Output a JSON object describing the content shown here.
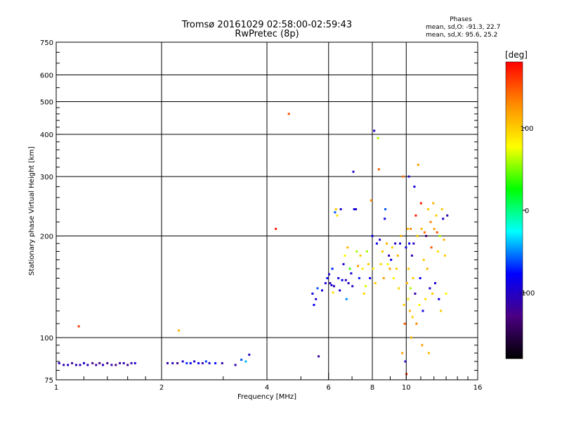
{
  "header": {
    "title_line1": "Tromsø 20161029 02:58:00-02:59:43",
    "title_line2": "RwPretec (8p)",
    "phase_title": "Phases",
    "phase_o": "mean, sd,O: -91.3, 22.7",
    "phase_x": "mean, sd,X:  95.6, 25.2"
  },
  "colorbar": {
    "unit": "[deg]",
    "range": [
      -180,
      180
    ],
    "ticks": [
      {
        "value": 100,
        "label": "100"
      },
      {
        "value": 0,
        "label": "0"
      },
      {
        "value": -100,
        "label": "-100"
      }
    ],
    "stops": [
      "#000000",
      "#4b0082",
      "#0000ff",
      "#00ffff",
      "#00ff00",
      "#ffff00",
      "#ff8c00",
      "#ff0000"
    ]
  },
  "chart_data": {
    "type": "scatter",
    "xlabel": "Frequency [MHz]",
    "ylabel": "Stationary phase Virtual Height [km]",
    "x_scale": "log",
    "y_scale": "log",
    "xlim": [
      1,
      16
    ],
    "ylim": [
      75,
      750
    ],
    "x_ticks": [
      {
        "v": 1,
        "l": "1"
      },
      {
        "v": 2,
        "l": "2"
      },
      {
        "v": 4,
        "l": "4"
      },
      {
        "v": 6,
        "l": "6"
      },
      {
        "v": 8,
        "l": "8"
      },
      {
        "v": 10,
        "l": "10"
      },
      {
        "v": 16,
        "l": "16"
      }
    ],
    "y_ticks": [
      {
        "v": 75,
        "l": "75"
      },
      {
        "v": 100,
        "l": "100"
      },
      {
        "v": 200,
        "l": "200"
      },
      {
        "v": 300,
        "l": "300"
      },
      {
        "v": 400,
        "l": "400"
      },
      {
        "v": 500,
        "l": "500"
      },
      {
        "v": 600,
        "l": "600"
      },
      {
        "v": 750,
        "l": "750"
      }
    ],
    "x_grid": [
      2,
      4,
      6,
      8,
      10
    ],
    "y_grid": [
      100,
      200,
      300,
      400,
      500,
      600
    ],
    "points": [
      [
        1.02,
        84,
        -105
      ],
      [
        1.05,
        83,
        -110
      ],
      [
        1.08,
        83,
        -100
      ],
      [
        1.11,
        84,
        -120
      ],
      [
        1.14,
        83,
        -105
      ],
      [
        1.17,
        83,
        -110
      ],
      [
        1.2,
        84,
        -95
      ],
      [
        1.23,
        83,
        -105
      ],
      [
        1.27,
        84,
        -130
      ],
      [
        1.3,
        83,
        -115
      ],
      [
        1.33,
        84,
        -130
      ],
      [
        1.36,
        83,
        -105
      ],
      [
        1.4,
        84,
        -125
      ],
      [
        1.44,
        83,
        -110
      ],
      [
        1.48,
        83,
        -130
      ],
      [
        1.52,
        84,
        -115
      ],
      [
        1.56,
        84,
        -105
      ],
      [
        1.6,
        83,
        -125
      ],
      [
        1.64,
        84,
        -110
      ],
      [
        1.68,
        84,
        -100
      ],
      [
        1.16,
        108,
        160
      ],
      [
        2.08,
        84,
        -115
      ],
      [
        2.15,
        84,
        -105
      ],
      [
        2.22,
        84,
        -125
      ],
      [
        2.3,
        85,
        -95
      ],
      [
        2.36,
        84,
        -70
      ],
      [
        2.42,
        84,
        -85
      ],
      [
        2.48,
        85,
        -100
      ],
      [
        2.55,
        84,
        -80
      ],
      [
        2.62,
        84,
        -110
      ],
      [
        2.68,
        85,
        -65
      ],
      [
        2.74,
        84,
        -95
      ],
      [
        2.85,
        84,
        -75
      ],
      [
        2.98,
        84,
        -110
      ],
      [
        2.24,
        105,
        110
      ],
      [
        3.25,
        83,
        -110
      ],
      [
        3.38,
        86,
        -60
      ],
      [
        3.48,
        85,
        -40
      ],
      [
        3.56,
        89,
        -105
      ],
      [
        4.24,
        210,
        170
      ],
      [
        4.62,
        460,
        150
      ],
      [
        5.4,
        135,
        -90
      ],
      [
        5.45,
        125,
        -80
      ],
      [
        5.52,
        130,
        -95
      ],
      [
        5.58,
        140,
        -60
      ],
      [
        5.62,
        88,
        -120
      ],
      [
        5.75,
        138,
        -90
      ],
      [
        5.88,
        145,
        -100
      ],
      [
        5.95,
        150,
        -75
      ],
      [
        6.02,
        154,
        -100
      ],
      [
        6.06,
        145,
        -110
      ],
      [
        6.12,
        143,
        -95
      ],
      [
        6.15,
        160,
        -70
      ],
      [
        6.18,
        136,
        90
      ],
      [
        6.22,
        142,
        -105
      ],
      [
        6.26,
        235,
        -60
      ],
      [
        6.3,
        240,
        100
      ],
      [
        6.35,
        230,
        90
      ],
      [
        6.4,
        150,
        -90
      ],
      [
        6.46,
        138,
        -95
      ],
      [
        6.5,
        240,
        -100
      ],
      [
        6.56,
        148,
        -80
      ],
      [
        6.62,
        165,
        -95
      ],
      [
        6.68,
        175,
        80
      ],
      [
        6.72,
        148,
        -110
      ],
      [
        6.75,
        130,
        -50
      ],
      [
        6.8,
        185,
        110
      ],
      [
        6.84,
        145,
        -100
      ],
      [
        6.9,
        160,
        40
      ],
      [
        6.96,
        155,
        -90
      ],
      [
        7.02,
        142,
        -100
      ],
      [
        7.06,
        310,
        -100
      ],
      [
        7.1,
        240,
        -90
      ],
      [
        7.18,
        240,
        -100
      ],
      [
        7.22,
        180,
        60
      ],
      [
        7.28,
        163,
        120
      ],
      [
        7.34,
        150,
        -70
      ],
      [
        7.4,
        175,
        100
      ],
      [
        7.5,
        160,
        85
      ],
      [
        7.58,
        135,
        95
      ],
      [
        7.66,
        142,
        70
      ],
      [
        7.72,
        180,
        60
      ],
      [
        7.8,
        165,
        100
      ],
      [
        7.88,
        150,
        -80
      ],
      [
        7.94,
        255,
        130
      ],
      [
        8.0,
        200,
        -90
      ],
      [
        8.05,
        160,
        80
      ],
      [
        8.1,
        410,
        -100
      ],
      [
        8.16,
        145,
        100
      ],
      [
        8.24,
        190,
        -80
      ],
      [
        8.3,
        390,
        60
      ],
      [
        8.35,
        315,
        145
      ],
      [
        8.4,
        195,
        -100
      ],
      [
        8.46,
        165,
        95
      ],
      [
        8.55,
        180,
        100
      ],
      [
        8.62,
        150,
        120
      ],
      [
        8.68,
        225,
        -85
      ],
      [
        8.72,
        240,
        -60
      ],
      [
        8.8,
        190,
        110
      ],
      [
        8.86,
        165,
        75
      ],
      [
        8.92,
        175,
        -110
      ],
      [
        8.98,
        160,
        120
      ],
      [
        9.05,
        170,
        -90
      ],
      [
        9.12,
        185,
        100
      ],
      [
        9.2,
        150,
        80
      ],
      [
        9.3,
        190,
        -100
      ],
      [
        9.38,
        160,
        100
      ],
      [
        9.46,
        175,
        110
      ],
      [
        9.52,
        140,
        95
      ],
      [
        9.6,
        190,
        -95
      ],
      [
        9.66,
        200,
        110
      ],
      [
        9.74,
        90,
        120
      ],
      [
        9.8,
        300,
        140
      ],
      [
        9.86,
        125,
        100
      ],
      [
        9.9,
        110,
        150
      ],
      [
        9.94,
        85,
        -105
      ],
      [
        9.98,
        185,
        -90
      ],
      [
        10.02,
        78,
        160
      ],
      [
        10.05,
        145,
        110
      ],
      [
        10.1,
        210,
        110
      ],
      [
        10.12,
        130,
        90
      ],
      [
        10.15,
        160,
        100
      ],
      [
        10.18,
        300,
        -100
      ],
      [
        10.2,
        190,
        -80
      ],
      [
        10.24,
        120,
        110
      ],
      [
        10.28,
        140,
        60
      ],
      [
        10.3,
        210,
        130
      ],
      [
        10.34,
        100,
        110
      ],
      [
        10.38,
        175,
        -110
      ],
      [
        10.42,
        115,
        100
      ],
      [
        10.46,
        150,
        100
      ],
      [
        10.5,
        190,
        -100
      ],
      [
        10.55,
        280,
        -90
      ],
      [
        10.6,
        135,
        -110
      ],
      [
        10.65,
        230,
        170
      ],
      [
        10.7,
        110,
        130
      ],
      [
        10.76,
        200,
        100
      ],
      [
        10.82,
        325,
        120
      ],
      [
        10.9,
        125,
        80
      ],
      [
        10.96,
        150,
        -80
      ],
      [
        11.02,
        250,
        170
      ],
      [
        11.06,
        210,
        110
      ],
      [
        11.1,
        95,
        120
      ],
      [
        11.16,
        120,
        -90
      ],
      [
        11.22,
        170,
        100
      ],
      [
        11.28,
        205,
        140
      ],
      [
        11.35,
        130,
        90
      ],
      [
        11.4,
        200,
        -130
      ],
      [
        11.48,
        160,
        110
      ],
      [
        11.55,
        240,
        100
      ],
      [
        11.6,
        90,
        110
      ],
      [
        11.68,
        140,
        -100
      ],
      [
        11.74,
        220,
        130
      ],
      [
        11.8,
        185,
        150
      ],
      [
        11.88,
        135,
        100
      ],
      [
        11.95,
        250,
        110
      ],
      [
        12.02,
        210,
        120
      ],
      [
        12.1,
        145,
        -100
      ],
      [
        12.18,
        230,
        100
      ],
      [
        12.25,
        205,
        150
      ],
      [
        12.32,
        180,
        90
      ],
      [
        12.4,
        130,
        -90
      ],
      [
        12.48,
        200,
        60
      ],
      [
        12.56,
        120,
        100
      ],
      [
        12.65,
        240,
        100
      ],
      [
        12.74,
        225,
        -100
      ],
      [
        12.82,
        195,
        110
      ],
      [
        12.9,
        175,
        100
      ],
      [
        13.0,
        135,
        80
      ],
      [
        13.1,
        230,
        -110
      ]
    ]
  }
}
